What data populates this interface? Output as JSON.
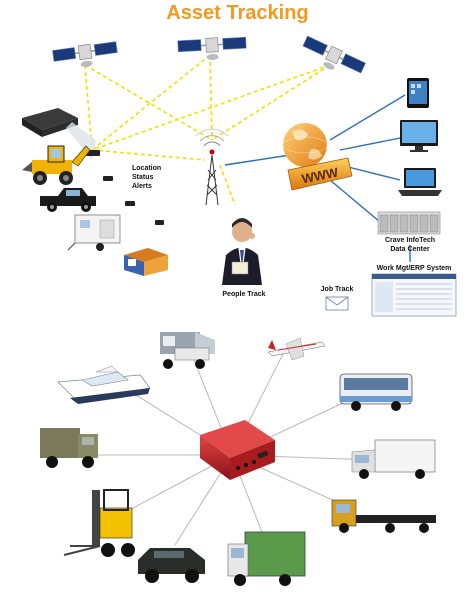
{
  "title": "Asset Tracking",
  "labels": {
    "location": "Location",
    "status": "Status",
    "alerts": "Alerts",
    "www": "WWW",
    "people_track": "People Track",
    "data_center_line1": "Crave InfoTech",
    "data_center_line2": "Data Center",
    "erp": "Work Mgt/ERP System",
    "job_track": "Job Track"
  },
  "colors": {
    "title": "#f39a1e",
    "satellite_link": "#f2e000",
    "network_link": "#2a6ebd",
    "spoke": "#b8b8b8",
    "tracker": "#c8242a"
  },
  "icons": {
    "satellites": [
      "satellite-icon",
      "satellite-icon",
      "satellite-icon"
    ],
    "top_assets": [
      "projector-icon",
      "backhoe-loader-icon",
      "pickup-truck-icon",
      "generator-trailer-icon",
      "portable-cabin-icon"
    ],
    "tower": "radio-tower-icon",
    "globe": "globe-icon",
    "client_devices": [
      "tablet-icon",
      "monitor-icon",
      "laptop-icon"
    ],
    "spokes": [
      "skip-loader-truck-icon",
      "small-airplane-icon",
      "yacht-icon",
      "bus-icon",
      "army-truck-icon",
      "box-truck-icon",
      "forklift-icon",
      "flatbed-truck-icon",
      "humvee-icon",
      "garbage-truck-icon"
    ]
  }
}
